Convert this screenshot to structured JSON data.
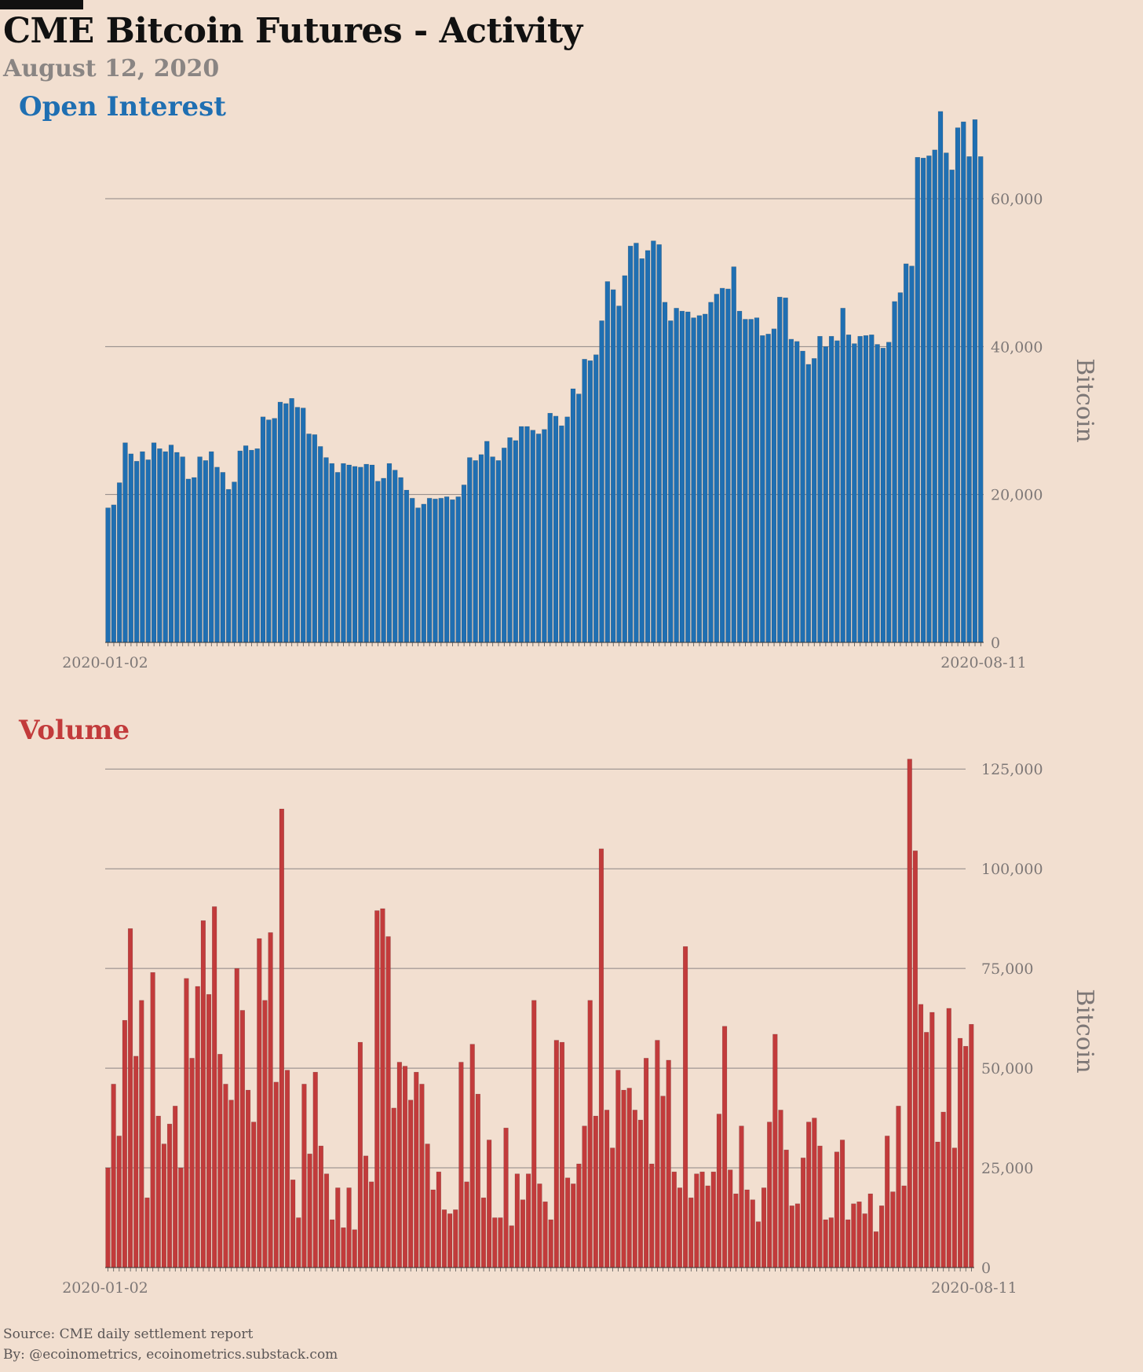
{
  "title": "CME Bitcoin Futures - Activity",
  "subtitle": "August 12, 2020",
  "footer": {
    "source": "Source: CME daily settlement report",
    "by": "By: @ecoinometrics, ecoinometrics.substack.com"
  },
  "colors": {
    "background": "#f2dfd0",
    "open_interest": "#1f6fb2",
    "volume": "#c23b3b",
    "grid": "#8c8584",
    "muted_text": "#7d7776"
  },
  "chart_data": [
    {
      "type": "bar",
      "title": "Open Interest",
      "ylabel": "Bitcoin",
      "xlabel": "",
      "first_date": "2020-01-02",
      "last_date": "2020-08-11",
      "x_tick_labels": [
        "2020-01-02",
        "2020-08-11"
      ],
      "ylim": [
        0,
        72000
      ],
      "y_ticks": [
        0,
        20000,
        40000,
        60000
      ],
      "y_tick_labels": [
        "0",
        "20,000",
        "40,000",
        "60,000"
      ],
      "grid": true,
      "values": [
        18200,
        18600,
        21600,
        27000,
        25500,
        24500,
        25800,
        24700,
        27000,
        26200,
        25800,
        26700,
        25700,
        25100,
        22100,
        22300,
        25100,
        24600,
        25800,
        23700,
        23000,
        20700,
        21700,
        25900,
        26600,
        26000,
        26200,
        30500,
        30100,
        30300,
        32500,
        32300,
        33000,
        31800,
        31700,
        28200,
        28100,
        26500,
        25000,
        24200,
        23000,
        24200,
        24000,
        23800,
        23700,
        24100,
        24000,
        21800,
        22200,
        24200,
        23300,
        22300,
        20600,
        19500,
        18200,
        18700,
        19500,
        19400,
        19500,
        19700,
        19300,
        19700,
        21300,
        25000,
        24600,
        25400,
        27200,
        25100,
        24600,
        26300,
        27700,
        27300,
        29200,
        29200,
        28700,
        28200,
        28800,
        31000,
        30600,
        29300,
        30500,
        34300,
        33600,
        38300,
        38100,
        38900,
        43500,
        48800,
        47700,
        45500,
        49600,
        53600,
        54000,
        51900,
        53000,
        54300,
        53800,
        46000,
        43500,
        45200,
        44800,
        44700,
        43900,
        44200,
        44400,
        46000,
        47100,
        47900,
        47800,
        50800,
        44800,
        43700,
        43700,
        43900,
        41500,
        41700,
        42400,
        46700,
        46600,
        41000,
        40700,
        39400,
        37600,
        38400,
        41400,
        40000,
        41400,
        40800,
        45200,
        41600,
        40400,
        41400,
        41500,
        41600,
        40300,
        39800,
        40600,
        46100,
        47300,
        51200,
        50900,
        65600,
        65500,
        65800,
        66600,
        71800,
        66200,
        63900,
        69600,
        70400,
        65700,
        70700,
        65700
      ]
    },
    {
      "type": "bar",
      "title": "Volume",
      "ylabel": "Bitcoin",
      "xlabel": "",
      "first_date": "2020-01-02",
      "last_date": "2020-08-11",
      "x_tick_labels": [
        "2020-01-02",
        "2020-08-11"
      ],
      "ylim": [
        0,
        128000
      ],
      "y_ticks": [
        0,
        25000,
        50000,
        75000,
        100000,
        125000
      ],
      "y_tick_labels": [
        "0",
        "25,000",
        "50,000",
        "75,000",
        "100,000",
        "125,000"
      ],
      "grid": true,
      "values": [
        25000,
        46000,
        33000,
        62000,
        85000,
        53000,
        67000,
        17500,
        74000,
        38000,
        31000,
        36000,
        40500,
        25000,
        72500,
        52500,
        70500,
        87000,
        68500,
        90500,
        53500,
        46000,
        42000,
        75000,
        64500,
        44500,
        36500,
        82500,
        67000,
        84000,
        46500,
        115000,
        49500,
        22000,
        12500,
        46000,
        28500,
        49000,
        30500,
        23500,
        12000,
        20000,
        10000,
        20000,
        9500,
        56500,
        28000,
        21500,
        89500,
        90000,
        83000,
        40000,
        51500,
        50500,
        42000,
        49000,
        46000,
        31000,
        19500,
        24000,
        14500,
        13500,
        14500,
        51500,
        21500,
        56000,
        43500,
        17500,
        32000,
        12500,
        12500,
        35000,
        10500,
        23500,
        17000,
        23500,
        67000,
        21000,
        16500,
        12000,
        57000,
        56500,
        22500,
        21000,
        26000,
        35500,
        67000,
        38000,
        105000,
        39500,
        30000,
        49500,
        44500,
        45000,
        39500,
        37000,
        52500,
        26000,
        57000,
        43000,
        52000,
        24000,
        20000,
        80500,
        17500,
        23500,
        24000,
        20500,
        24000,
        38500,
        60500,
        24500,
        18500,
        35500,
        19500,
        17000,
        11500,
        20000,
        36500,
        58500,
        39500,
        29500,
        15500,
        16000,
        27500,
        36500,
        37500,
        30500,
        12000,
        12500,
        29000,
        32000,
        12000,
        16000,
        16500,
        13500,
        18500,
        9000,
        15500,
        33000,
        19000,
        40500,
        20500,
        127500,
        104500,
        66000,
        59000,
        64000,
        31500,
        39000,
        65000,
        30000,
        57500,
        55500,
        61000
      ]
    }
  ]
}
